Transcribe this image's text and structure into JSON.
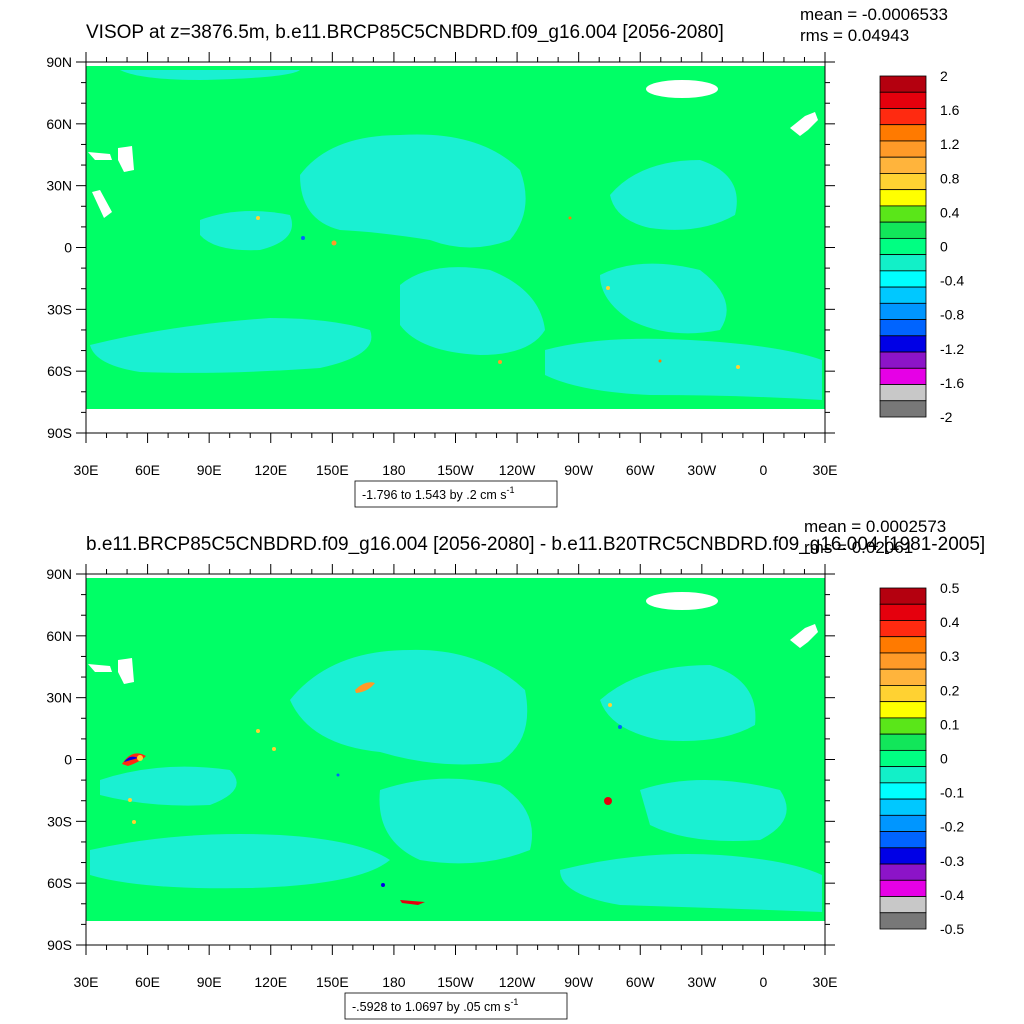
{
  "panels": [
    {
      "title": "VISOP at z=3876.5m, b.e11.BRCP85C5CNBDRD.f09_g16.004 [2056-2080]",
      "mean": "mean = -0.0006533",
      "rms": "rms = 0.04943",
      "range_text": "-1.796 to 1.543 by .2 cm s",
      "range_sup": "-1",
      "colorbar_labels": [
        "2",
        "1.6",
        "1.2",
        "0.8",
        "0.4",
        "0",
        "-0.4",
        "-0.8",
        "-1.2",
        "-1.6",
        "-2"
      ],
      "colorbar_colors": [
        "#b4000f",
        "#e5000d",
        "#ff2a10",
        "#ff7a00",
        "#ff9a28",
        "#ffb43c",
        "#ffd232",
        "#ffff00",
        "#5ae619",
        "#12e65a",
        "#00ff82",
        "#12f0c8",
        "#00ffff",
        "#00c8ff",
        "#0096ff",
        "#0064ff",
        "#0000e6",
        "#8c14c8",
        "#e600e6",
        "#c8c8c8",
        "#787878"
      ]
    },
    {
      "title": "b.e11.BRCP85C5CNBDRD.f09_g16.004 [2056-2080] - b.e11.B20TRC5CNBDRD.f09_g16.004 [1981-2005]",
      "mean": "mean = 0.0002573",
      "rms": "rms = 0.02061",
      "range_text": "-.5928 to 1.0697 by .05 cm s",
      "range_sup": "-1",
      "colorbar_labels": [
        "0.5",
        "0.4",
        "0.3",
        "0.2",
        "0.1",
        "0",
        "-0.1",
        "-0.2",
        "-0.3",
        "-0.4",
        "-0.5"
      ],
      "colorbar_colors": [
        "#b4000f",
        "#e5000d",
        "#ff2a10",
        "#ff7a00",
        "#ff9a28",
        "#ffb43c",
        "#ffd232",
        "#ffff00",
        "#5ae619",
        "#12e65a",
        "#00ff82",
        "#12f0c8",
        "#00ffff",
        "#00c8ff",
        "#0096ff",
        "#0064ff",
        "#0000e6",
        "#8c14c8",
        "#e600e6",
        "#c8c8c8",
        "#787878"
      ]
    }
  ],
  "chart_data": [
    {
      "type": "heatmap",
      "title": "VISOP at z=3876.5m, b.e11.BRCP85C5CNBDRD.f09_g16.004 [2056-2080]",
      "x_tick_labels": [
        "30E",
        "60E",
        "90E",
        "120E",
        "150E",
        "180",
        "150W",
        "120W",
        "90W",
        "60W",
        "30W",
        "0",
        "30E"
      ],
      "y_tick_labels": [
        "90N",
        "60N",
        "30N",
        "0",
        "30S",
        "60S",
        "90S"
      ],
      "xlim": [
        30,
        390
      ],
      "ylim": [
        -90,
        90
      ],
      "units": "cm s-1",
      "levels": [
        -2,
        -1.8,
        -1.6,
        -1.4,
        -1.2,
        -1,
        -0.8,
        -0.6,
        -0.4,
        -0.2,
        0,
        0.2,
        0.4,
        0.6,
        0.8,
        1,
        1.2,
        1.4,
        1.6,
        1.8,
        2
      ],
      "data_min": -1.796,
      "data_max": 1.543,
      "contour_interval": 0.2,
      "mean": -0.0006533,
      "rms": 0.04943
    },
    {
      "type": "heatmap",
      "title": "b.e11.BRCP85C5CNBDRD.f09_g16.004 [2056-2080] - b.e11.B20TRC5CNBDRD.f09_g16.004 [1981-2005]",
      "x_tick_labels": [
        "30E",
        "60E",
        "90E",
        "120E",
        "150E",
        "180",
        "150W",
        "120W",
        "90W",
        "60W",
        "30W",
        "0",
        "30E"
      ],
      "y_tick_labels": [
        "90N",
        "60N",
        "30N",
        "0",
        "30S",
        "60S",
        "90S"
      ],
      "xlim": [
        30,
        390
      ],
      "ylim": [
        -90,
        90
      ],
      "units": "cm s-1",
      "levels": [
        -0.5,
        -0.45,
        -0.4,
        -0.35,
        -0.3,
        -0.25,
        -0.2,
        -0.15,
        -0.1,
        -0.05,
        0,
        0.05,
        0.1,
        0.15,
        0.2,
        0.25,
        0.3,
        0.35,
        0.4,
        0.45,
        0.5
      ],
      "data_min": -0.5928,
      "data_max": 1.0697,
      "contour_interval": 0.05,
      "mean": 0.0002573,
      "rms": 0.02061
    }
  ]
}
